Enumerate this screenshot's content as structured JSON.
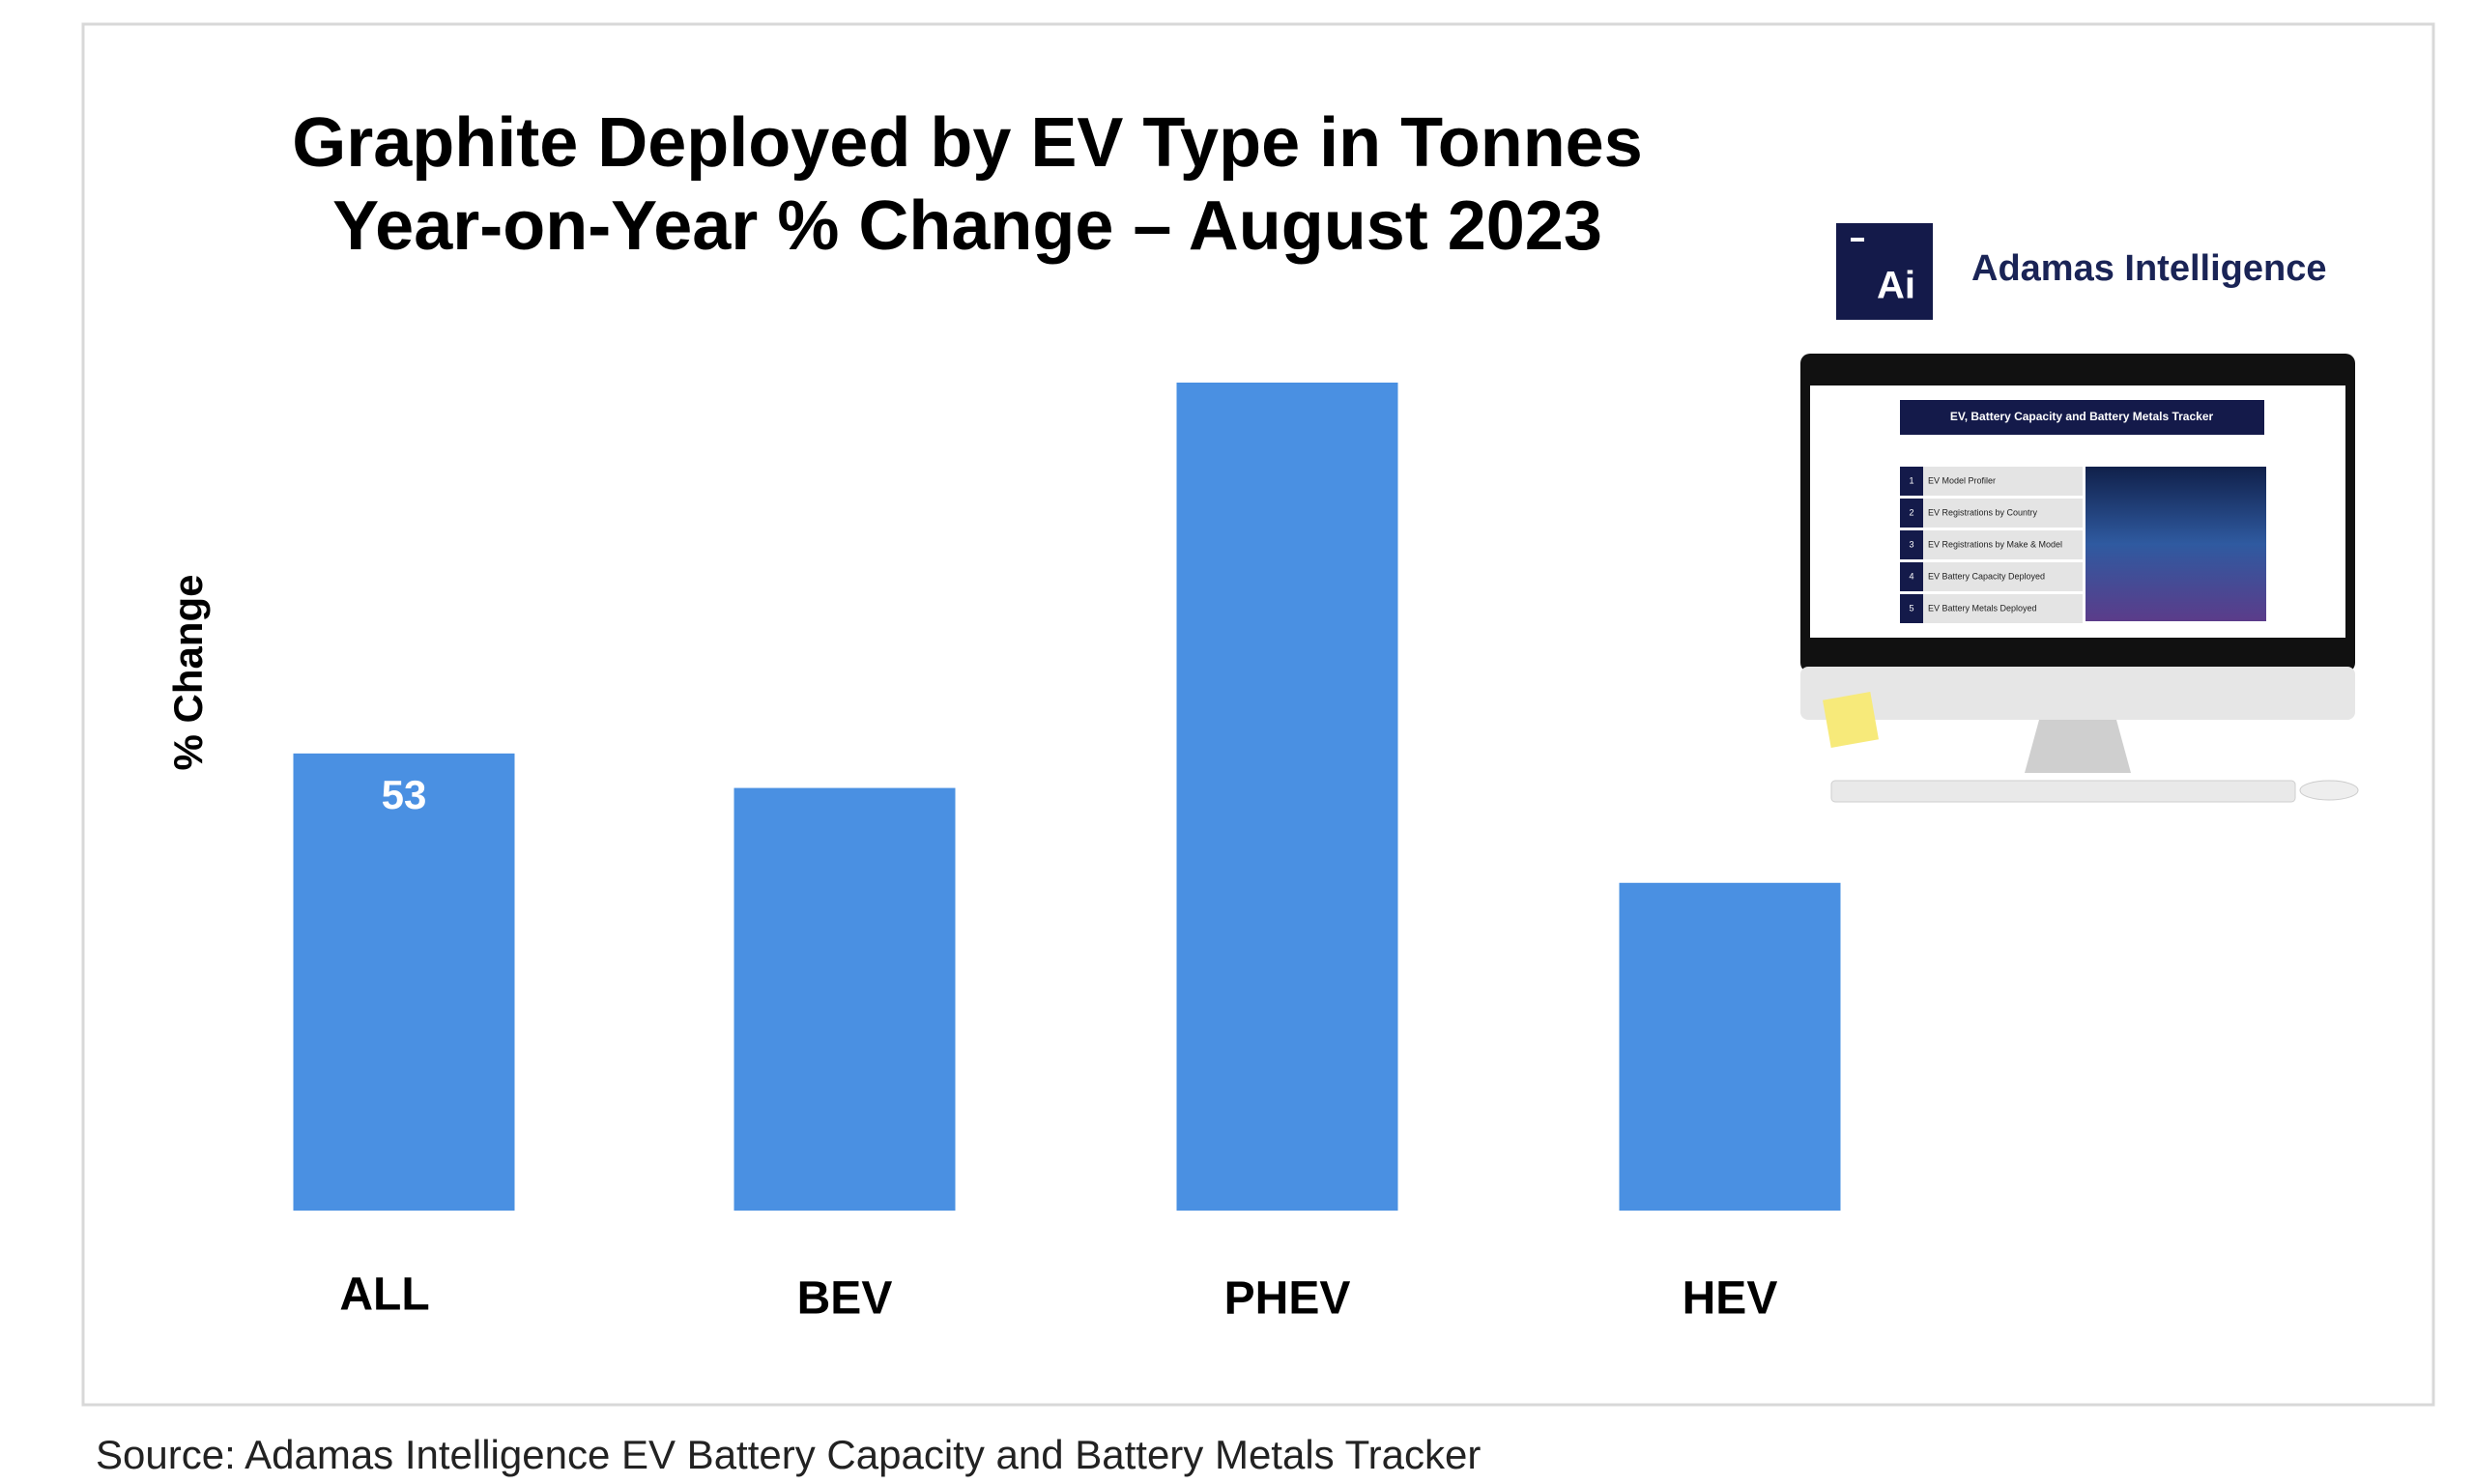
{
  "chart_data": {
    "type": "bar",
    "title": [
      "Graphite Deployed by EV Type in Tonnes",
      "Year-on-Year % Change – August 2023"
    ],
    "y_label": "% Change",
    "categories": [
      "ALL",
      "BEV",
      "PHEV",
      "HEV"
    ],
    "values": [
      53,
      49,
      96,
      38
    ],
    "color": "#4a90e2"
  },
  "source": "Source: Adamas Intelligence EV Battery Capacity and Battery Metals Tracker",
  "promo": {
    "logo": "Ai",
    "brand": "Adamas Intelligence",
    "screen_title": "EV, Battery Capacity and Battery Metals Tracker",
    "items": [
      {
        "num": "1",
        "label": "EV Model Profiler"
      },
      {
        "num": "2",
        "label": "EV Registrations by Country"
      },
      {
        "num": "3",
        "label": "EV Registrations by Make & Model"
      },
      {
        "num": "4",
        "label": "EV Battery Capacity Deployed"
      },
      {
        "num": "5",
        "label": "EV Battery Metals Deployed"
      }
    ]
  }
}
